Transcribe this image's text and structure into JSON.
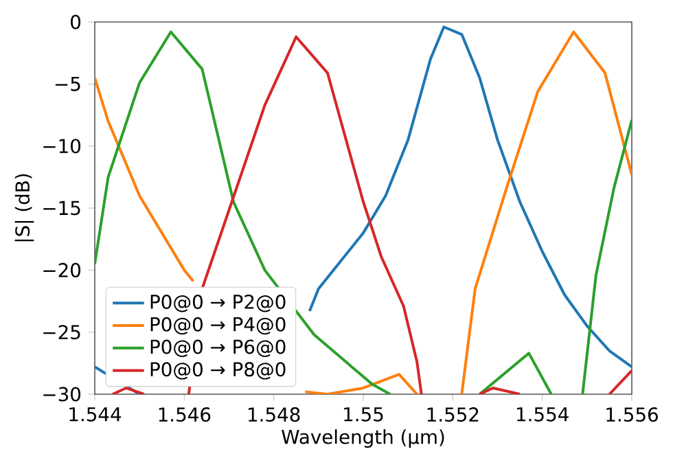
{
  "chart_data": {
    "type": "line",
    "xlabel": "Wavelength (μm)",
    "ylabel": "|S| (dB)",
    "xlim": [
      1.544,
      1.556
    ],
    "ylim": [
      -30,
      0
    ],
    "xticks": [
      1.544,
      1.546,
      1.548,
      1.55,
      {
        "value": 1.552,
        "label": "1.552"
      },
      1.554,
      1.556
    ],
    "yticks": [
      {
        "value": -30,
        "label": "−30"
      },
      {
        "value": -25,
        "label": "−25"
      },
      {
        "value": -20,
        "label": "−20"
      },
      {
        "value": -15,
        "label": "−15"
      },
      {
        "value": -10,
        "label": "−10"
      },
      {
        "value": -5,
        "label": "−5"
      },
      0
    ],
    "legend": "bottom left",
    "grid": false,
    "marker": "none",
    "line_style": "solid",
    "series": [
      {
        "name": "P0@0 → P2@0",
        "color": "#1f77b4",
        "x": [
          1.544,
          1.545,
          1.5455,
          1.5488,
          1.549,
          1.55,
          1.5505,
          1.551,
          1.5515,
          1.5518,
          1.5522,
          1.5526,
          1.553,
          1.5535,
          1.554,
          1.5545,
          1.555,
          1.5555,
          1.556
        ],
        "values": [
          -27.8,
          -30,
          null,
          -23.3,
          -21.5,
          -17,
          -14,
          -9.5,
          -3,
          -0.4,
          -1,
          -4.5,
          -9.5,
          -14.5,
          -18.5,
          -22,
          -24.5,
          -26.5,
          -27.8
        ]
      },
      {
        "name": "P0@0 → P4@0",
        "color": "#ff7f0e",
        "x": [
          1.544,
          1.5443,
          1.545,
          1.546,
          1.5462,
          1.547,
          1.5487,
          1.5492,
          1.55,
          1.5508,
          1.5512,
          1.5517,
          1.5522,
          1.5525,
          1.5532,
          1.5539,
          1.5547,
          1.5554,
          1.556
        ],
        "values": [
          -4.5,
          -8,
          -14,
          -20,
          -20.9,
          null,
          -29.8,
          -30,
          -29.5,
          -28.4,
          -30,
          null,
          -30,
          -21.5,
          -13.4,
          -5.6,
          -0.8,
          -4.1,
          -12.3
        ]
      },
      {
        "name": "P0@0 → P6@0",
        "color": "#2ca02c",
        "x": [
          1.544,
          1.5443,
          1.545,
          1.5457,
          1.5464,
          1.5471,
          1.5478,
          1.5489,
          1.5502,
          1.5506,
          1.5516,
          1.5526,
          1.5537,
          1.5542,
          1.5545,
          1.5549,
          1.5552,
          1.5556,
          1.556
        ],
        "values": [
          -19.5,
          -12.5,
          -4.9,
          -0.8,
          -3.8,
          -14.5,
          -20,
          -25.2,
          -29.2,
          -30,
          null,
          -30,
          -26.7,
          -30,
          null,
          -30,
          -20.4,
          -13.4,
          -7.9
        ]
      },
      {
        "name": "P0@0 → P8@0",
        "color": "#d62728",
        "x": [
          1.5444,
          1.5447,
          1.5451,
          1.5456,
          1.5461,
          1.5464,
          1.5471,
          1.5478,
          1.5485,
          1.5492,
          1.55,
          1.5504,
          1.5509,
          1.5512,
          1.5513,
          1.552,
          1.5526,
          1.5529,
          1.5535,
          1.5545,
          1.5555,
          1.556
        ],
        "values": [
          -30,
          -29.5,
          -30,
          null,
          -30,
          -21.5,
          -14.1,
          -6.7,
          -1.2,
          -4.1,
          -14.5,
          -18.9,
          -22.9,
          -27.4,
          -30,
          null,
          -30,
          -29.5,
          -30,
          null,
          -30,
          -28.1
        ]
      }
    ]
  }
}
